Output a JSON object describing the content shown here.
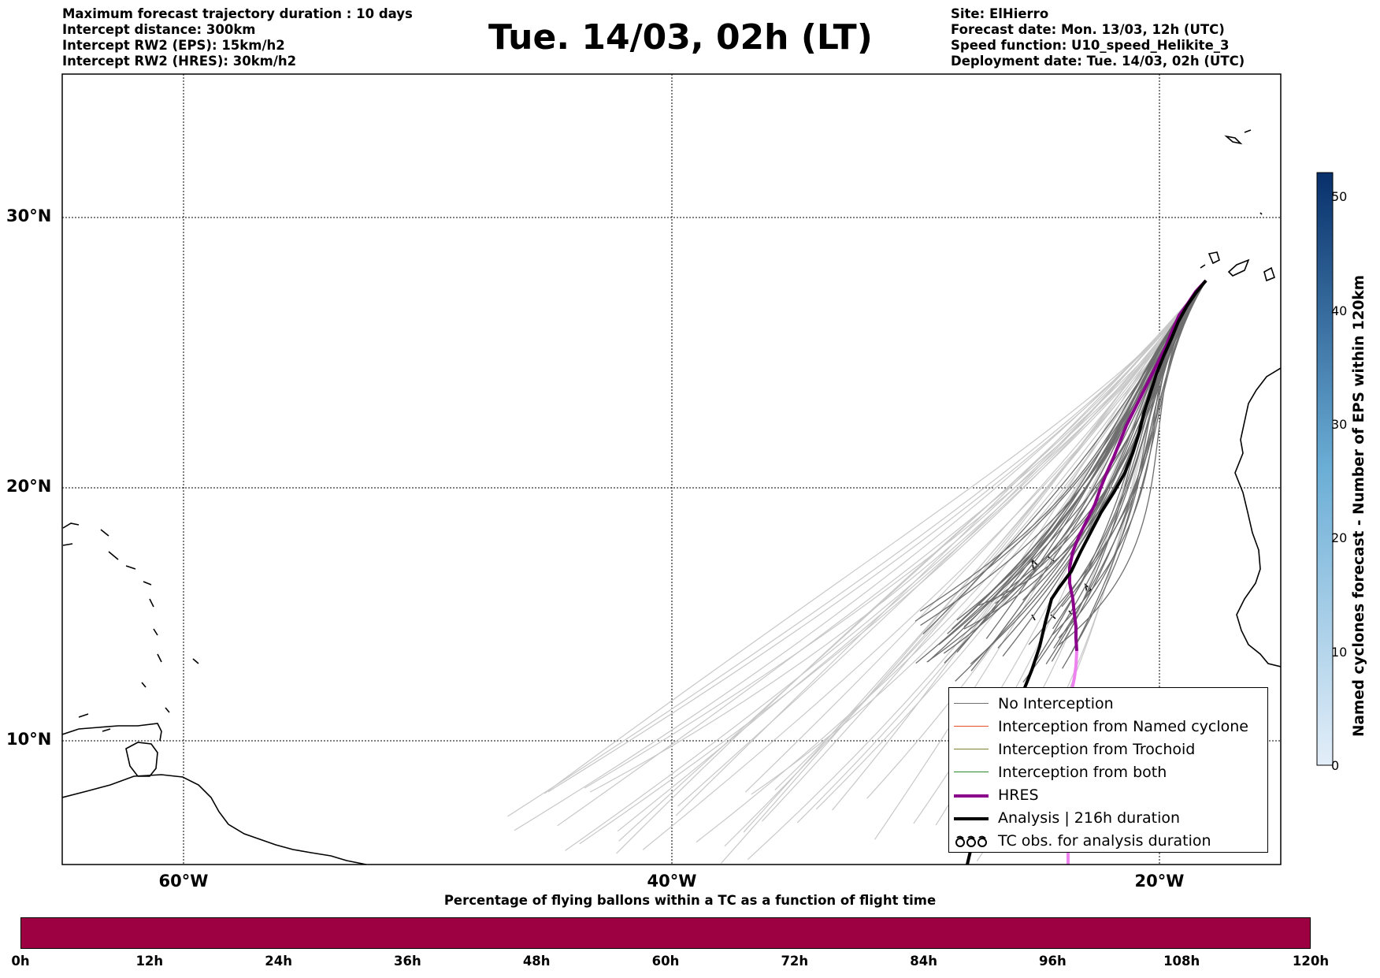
{
  "header_left": [
    "Maximum forecast trajectory duration : 10 days",
    "Intercept distance: 300km",
    "Intercept RW2 (EPS):  15km/h2",
    "Intercept RW2 (HRES): 30km/h2"
  ],
  "title": "Tue. 14/03, 02h (LT)",
  "header_right": [
    "Site: ElHierro",
    "Forecast date: Mon. 13/03, 12h (UTC)",
    "Speed function: U10_speed_Helikite_3",
    "Deployment date: Tue. 14/03, 02h (UTC)"
  ],
  "map": {
    "lat_labels": [
      "30°N",
      "20°N",
      "10°N"
    ],
    "lon_labels": [
      "60°W",
      "40°W",
      "20°W"
    ],
    "lon_range": [
      -65,
      -15
    ],
    "lat_range": [
      5,
      35
    ],
    "gridlines": "dotted"
  },
  "legend": {
    "items": [
      {
        "label": "No Interception",
        "color": "#707070"
      },
      {
        "label": "Interception from Named cyclone",
        "color": "#e8502a"
      },
      {
        "label": "Interception from Trochoid",
        "color": "#808030"
      },
      {
        "label": "Interception from both",
        "color": "#2a8a2a"
      },
      {
        "label": "HRES",
        "color": "#8b008b"
      },
      {
        "label": "Analysis | 216h duration",
        "color": "#000000"
      },
      {
        "label": "TC obs. for analysis duration",
        "color": "#000000",
        "icon": "cyclone-symbols"
      }
    ]
  },
  "colorbar": {
    "title": "Named cyclones forecast - Number of EPS within 120km",
    "ticks": [
      "0",
      "10",
      "20",
      "30",
      "40",
      "50"
    ],
    "range": [
      0,
      52
    ],
    "colors": [
      "#e3eef9",
      "#08306b"
    ]
  },
  "bottom_bar": {
    "title": "Percentage of flying ballons within a TC as a function of flight time",
    "ticks": [
      "0h",
      "12h",
      "24h",
      "36h",
      "48h",
      "60h",
      "72h",
      "84h",
      "96h",
      "108h",
      "120h"
    ],
    "color": "#9e0142"
  }
}
